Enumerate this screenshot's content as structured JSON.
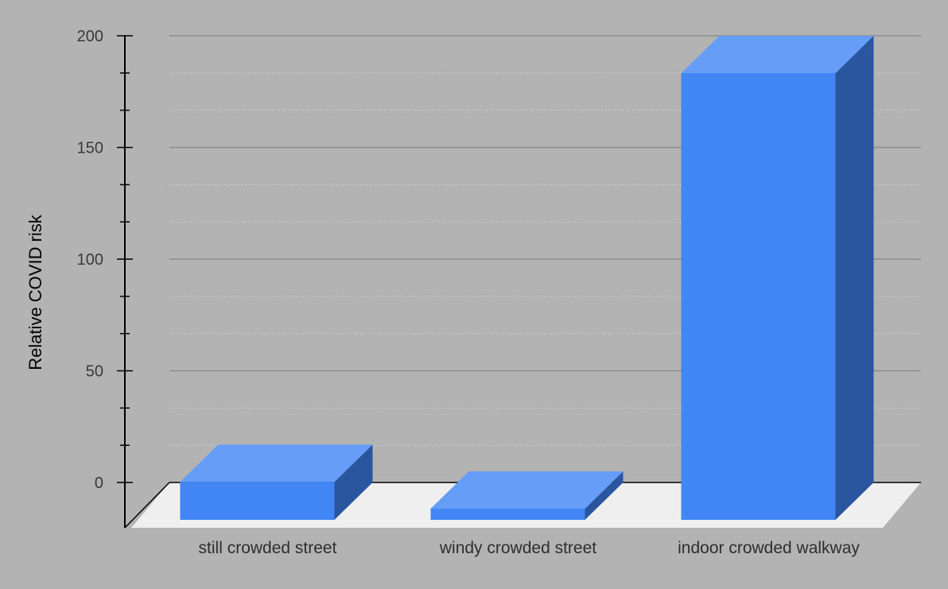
{
  "chart_data": {
    "type": "bar",
    "style": "3d",
    "title": "",
    "xlabel": "",
    "ylabel": "Relative COVID risk",
    "categories": [
      "still crowded street",
      "windy crowded street",
      "indoor crowded walkway"
    ],
    "values": [
      17,
      5,
      200
    ],
    "ylim": [
      0,
      200
    ],
    "yticks": [
      "0",
      "50",
      "100",
      "150",
      "200"
    ],
    "grid": true,
    "legend": "none",
    "colors": {
      "bar_front": "#4285f4",
      "bar_top": "#669df6",
      "bar_side": "#2a56a0",
      "floor": "#efefef",
      "background": "#b3b3b3",
      "gridline": "#8c8c8c",
      "gridline_minor": "#d6d6d6"
    }
  }
}
